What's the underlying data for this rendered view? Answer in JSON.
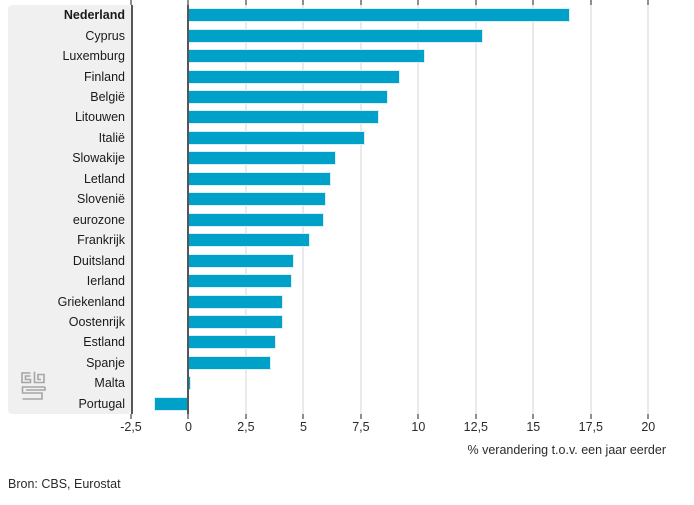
{
  "chart_data": {
    "type": "bar",
    "orientation": "horizontal",
    "title": "",
    "xlabel": "% verandering t.o.v. een jaar eerder",
    "ylabel": "",
    "xlim": [
      -2.5,
      20
    ],
    "tick_step": 2.5,
    "tick_labels": [
      "-2,5",
      "0",
      "2,5",
      "5",
      "7,5",
      "10",
      "12,5",
      "15",
      "17,5",
      "20"
    ],
    "grid": true,
    "legend": false,
    "bar_color": "#00a1c8",
    "highlight_category": "Nederland",
    "categories": [
      "Nederland",
      "Cyprus",
      "Luxemburg",
      "Finland",
      "België",
      "Litouwen",
      "Italië",
      "Slowakije",
      "Letland",
      "Slovenië",
      "eurozone",
      "Frankrijk",
      "Duitsland",
      "Ierland",
      "Griekenland",
      "Oostenrijk",
      "Estland",
      "Spanje",
      "Malta",
      "Portugal"
    ],
    "values": [
      16.6,
      12.8,
      10.3,
      9.2,
      8.7,
      8.3,
      7.7,
      6.4,
      6.2,
      6.0,
      5.9,
      5.3,
      4.6,
      4.5,
      4.1,
      4.1,
      3.8,
      3.6,
      0.1,
      -1.5
    ]
  },
  "footer": {
    "source": "Bron: CBS, Eurostat"
  },
  "logo": {
    "name": "CBS"
  }
}
